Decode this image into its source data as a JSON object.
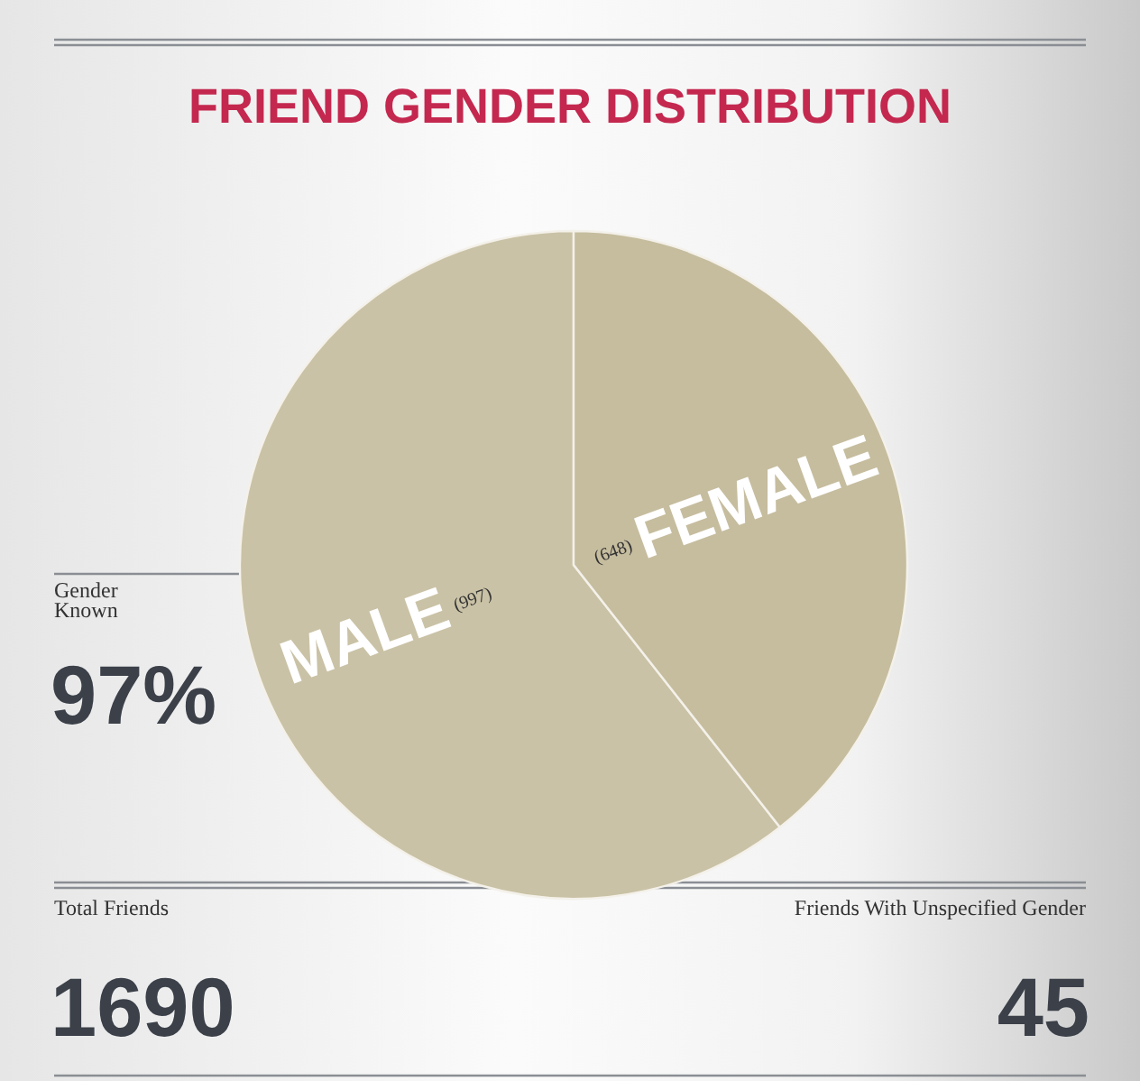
{
  "chart_data": {
    "type": "pie",
    "title": "FRIEND GENDER DISTRIBUTION",
    "categories": [
      "MALE",
      "FEMALE"
    ],
    "values": [
      997,
      648
    ],
    "colors": [
      "#cac2a6",
      "#c6bd9f"
    ],
    "value_labels": [
      "(997)",
      "(648)"
    ],
    "annotations": [
      "Gender Known",
      "97%",
      "Total Friends",
      "1690",
      "Friends With Unspecified Gender",
      "45"
    ]
  }
}
